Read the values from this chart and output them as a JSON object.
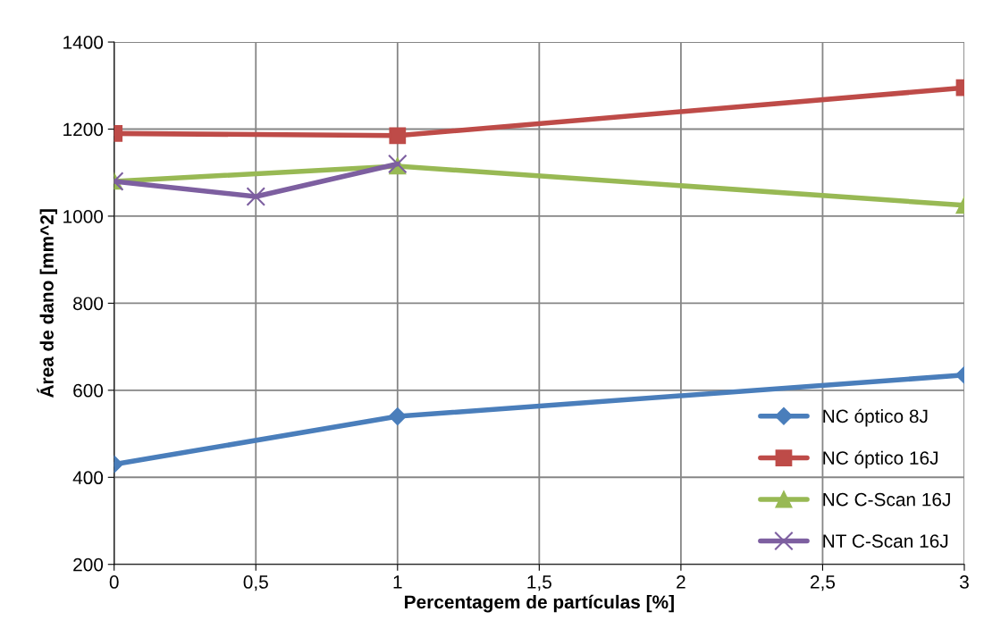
{
  "chart_data": {
    "type": "line",
    "xlabel": "Percentagem de partículas [%]",
    "ylabel": "Área de dano [mm^2]",
    "xlim": [
      0,
      3
    ],
    "xticks": [
      0,
      {
        "value": 0.5,
        "label": "0,5"
      },
      1,
      {
        "value": 1.5,
        "label": "1,5"
      },
      2,
      {
        "value": 2.5,
        "label": "2,5"
      },
      3
    ],
    "ylim": [
      200,
      1400
    ],
    "yticks": [
      200,
      400,
      600,
      800,
      1000,
      1200,
      1400
    ],
    "grid": true,
    "legend": "bottom right",
    "series": [
      {
        "name": "NC óptico 8J",
        "color": "#4a7ebb",
        "marker": "diamond",
        "x": [
          0,
          1,
          3
        ],
        "values": [
          430,
          540,
          635
        ]
      },
      {
        "name": "NC óptico 16J",
        "color": "#be4b48",
        "marker": "square",
        "x": [
          0,
          1,
          3
        ],
        "values": [
          1190,
          1185,
          1295
        ]
      },
      {
        "name": "NC C-Scan 16J",
        "color": "#98b954",
        "marker": "triangle",
        "x": [
          0,
          1,
          3
        ],
        "values": [
          1080,
          1115,
          1025
        ]
      },
      {
        "name": "NT C-Scan 16J",
        "color": "#7d5fa0",
        "marker": "cross",
        "x": [
          0,
          0.5,
          1
        ],
        "values": [
          1080,
          1045,
          1120
        ]
      }
    ]
  }
}
